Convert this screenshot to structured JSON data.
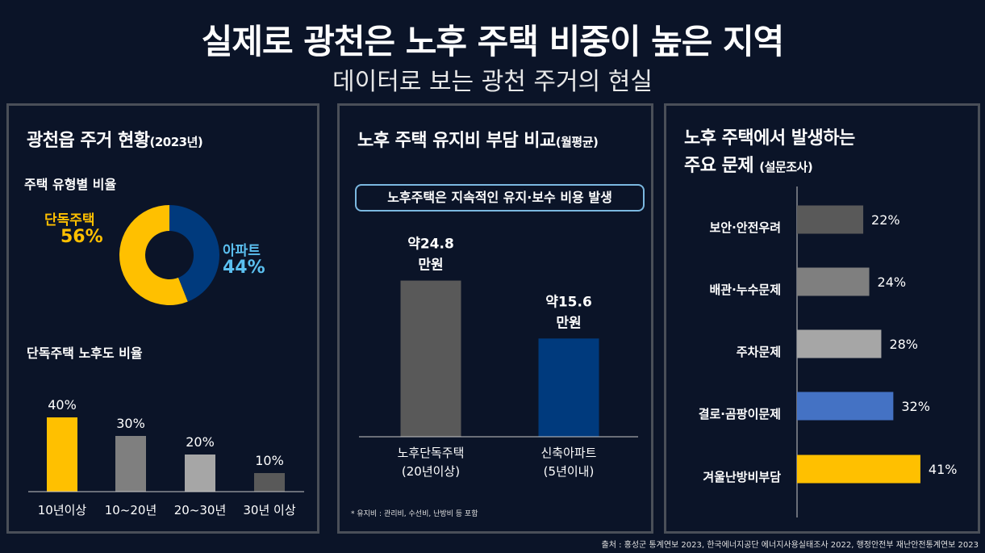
{
  "header": {
    "title": "실제로 광천은 노후 주택 비중이 높은 지역",
    "subtitle": "데이터로 보는 광천 주거의 현실"
  },
  "panel1": {
    "title": "광천읍 주거 현황",
    "title_suffix": "(2023년)",
    "donut_label": "주택 유형별 비율",
    "bar_label": "단독주택 노후도 비율"
  },
  "panel2": {
    "title": "노후 주택 유지비 부담 비교",
    "title_suffix": "(월평균)",
    "note": "노후주택은 지속적인 유지·보수 비용 발생",
    "footnote": "* 유지비 : 관리비, 수선비, 난방비 등 포함"
  },
  "panel3": {
    "title_line1": "노후 주택에서 발생하는",
    "title_line2": "주요 문제",
    "title_suffix": "(설문조사)"
  },
  "source": "출처 : 홍성군 통계연보 2023,  한국에너지공단 에너지사용실태조사 2022, 행정안전부 재난안전통계연보 2023",
  "colors": {
    "yellow": "#ffc000",
    "navy": "#003a7d",
    "light_blue": "#5bc0f0",
    "gray_dark": "#595959",
    "gray_mid": "#7f7f7f",
    "gray_light": "#a6a6a6",
    "blue": "#4472c4"
  },
  "chart_data": [
    {
      "type": "pie",
      "title": "주택 유형별 비율",
      "slices": [
        {
          "name": "단독주택",
          "value": 56,
          "label": "56%",
          "color": "#ffc000"
        },
        {
          "name": "아파트",
          "value": 44,
          "label": "44%",
          "color": "#003a7d"
        }
      ]
    },
    {
      "type": "bar",
      "title": "단독주택 노후도 비율",
      "categories": [
        "10년이상",
        "10~20년",
        "20~30년",
        "30년 이상"
      ],
      "values": [
        40,
        30,
        20,
        10
      ],
      "data_labels": [
        "40%",
        "30%",
        "20%",
        "10%"
      ],
      "colors": [
        "#ffc000",
        "#7f7f7f",
        "#a6a6a6",
        "#595959"
      ]
    },
    {
      "type": "bar",
      "title": "노후 주택 유지비 부담 비교",
      "categories": [
        [
          "노후단독주택",
          "(20년이상)"
        ],
        [
          "신축아파트",
          "(5년이내)"
        ]
      ],
      "values": [
        24.8,
        15.6
      ],
      "data_labels": [
        [
          "약24.8",
          "만원"
        ],
        [
          "약15.6",
          "만원"
        ]
      ],
      "colors": [
        "#595959",
        "#003a7d"
      ]
    },
    {
      "type": "bar",
      "orientation": "horizontal",
      "title": "주요 문제",
      "categories": [
        "보안·안전우려",
        "배관·누수문제",
        "주차문제",
        "결로·곰팡이문제",
        "겨울난방비부담"
      ],
      "values": [
        22,
        24,
        28,
        32,
        41
      ],
      "data_labels": [
        "22%",
        "24%",
        "28%",
        "32%",
        "41%"
      ],
      "colors": [
        "#595959",
        "#7f7f7f",
        "#a6a6a6",
        "#4472c4",
        "#ffc000"
      ]
    }
  ]
}
